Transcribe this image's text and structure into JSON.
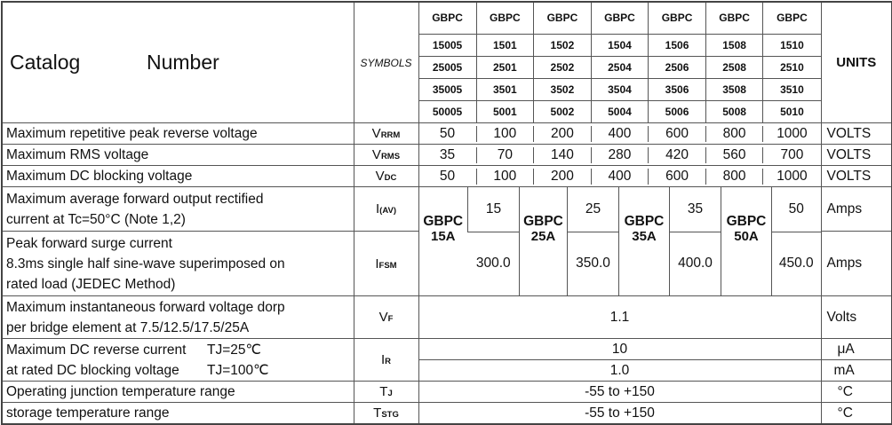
{
  "header": {
    "catalog": "Catalog",
    "number": "Number",
    "symbols": "SYMBOLS",
    "units": "UNITS",
    "gbpc": "GBPC",
    "models": [
      [
        "15005",
        "1501",
        "1502",
        "1504",
        "1506",
        "1508",
        "1510"
      ],
      [
        "25005",
        "2501",
        "2502",
        "2504",
        "2506",
        "2508",
        "2510"
      ],
      [
        "35005",
        "3501",
        "3502",
        "3504",
        "3506",
        "3508",
        "3510"
      ],
      [
        "50005",
        "5001",
        "5002",
        "5004",
        "5006",
        "5008",
        "5010"
      ]
    ]
  },
  "rows": {
    "vrrm": {
      "label": "Maximum repetitive peak reverse voltage",
      "sym": "V",
      "sub": "RRM",
      "values": [
        "50",
        "100",
        "200",
        "400",
        "600",
        "800",
        "1000"
      ],
      "unit": "VOLTS"
    },
    "vrms": {
      "label": "Maximum RMS voltage",
      "sym": "V",
      "sub": "RMS",
      "values": [
        "35",
        "70",
        "140",
        "280",
        "420",
        "560",
        "700"
      ],
      "unit": "VOLTS"
    },
    "vdc": {
      "label": "Maximum DC blocking voltage",
      "sym": "V",
      "sub": "DC",
      "values": [
        "50",
        "100",
        "200",
        "400",
        "600",
        "800",
        "1000"
      ],
      "unit": "VOLTS"
    },
    "iav": {
      "label1": "Maximum average forward output rectified",
      "label2": "current at  Tc=50°C  (Note 1,2)",
      "sym": "I",
      "sub": "(AV)",
      "values": [
        "15",
        "25",
        "35",
        "50"
      ],
      "unit": "Amps"
    },
    "ifsm": {
      "label1": "Peak forward surge current",
      "label2": "8.3ms single half sine-wave superimposed on",
      "label3": "rated load (JEDEC Method)",
      "sym": "I",
      "sub": "FSM",
      "values": [
        "300.0",
        "350.0",
        "400.0",
        "450.0"
      ],
      "unit": "Amps"
    },
    "groups": [
      {
        "name": "GBPC",
        "rating": "15A"
      },
      {
        "name": "GBPC",
        "rating": "25A"
      },
      {
        "name": "GBPC",
        "rating": "35A"
      },
      {
        "name": "GBPC",
        "rating": "50A"
      }
    ],
    "vf": {
      "label1": "Maximum instantaneous forward voltage dorp",
      "label2": "per bridge element at 7.5/12.5/17.5/25A",
      "sym": "V",
      "sub": "F",
      "value": "1.1",
      "unit": "Volts"
    },
    "ir": {
      "label1": "Maximum DC reverse current",
      "cond1": "TJ=25℃",
      "label2": "at rated DC blocking voltage",
      "cond2": "TJ=100℃",
      "sym": "I",
      "sub": "R",
      "value1": "10",
      "value2": "1.0",
      "unit1": "μA",
      "unit2": "mA"
    },
    "tj": {
      "label": "Operating junction temperature range",
      "sym": "T",
      "sub": "J",
      "value": "-55 to +150",
      "unit": "°C"
    },
    "tstg": {
      "label": "storage temperature range",
      "sym": "T",
      "sub": "STG",
      "value": "-55 to +150",
      "unit": "°C"
    }
  }
}
